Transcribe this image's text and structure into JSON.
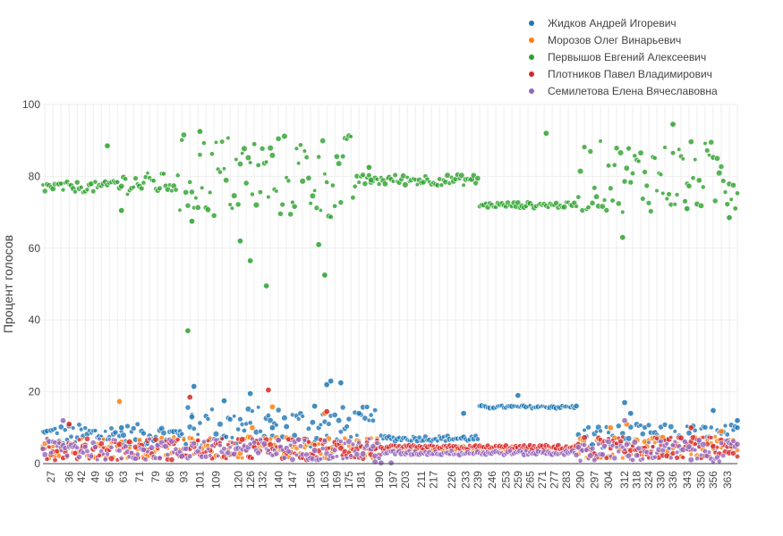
{
  "chart_data": {
    "type": "scatter",
    "title": "",
    "xlabel": "",
    "ylabel": "Процент голосов",
    "ylim": [
      0,
      100
    ],
    "xlim": [
      23,
      368
    ],
    "grid": true,
    "legend_position": "top-right",
    "y_ticks": [
      0,
      20,
      40,
      60,
      80,
      100
    ],
    "x_ticks": [
      27,
      36,
      42,
      49,
      56,
      63,
      71,
      79,
      86,
      93,
      101,
      109,
      120,
      126,
      132,
      140,
      147,
      156,
      163,
      169,
      175,
      181,
      190,
      197,
      203,
      211,
      217,
      226,
      233,
      239,
      246,
      253,
      259,
      265,
      271,
      277,
      283,
      290,
      297,
      304,
      312,
      318,
      324,
      330,
      336,
      343,
      350,
      356,
      363
    ],
    "series": [
      {
        "name": "Жидков Андрей Игоревич",
        "color": "#1f77b4",
        "segments": [
          {
            "x_start": 23,
            "x_end": 91,
            "center": 8,
            "spread": 3
          },
          {
            "x_start": 91,
            "x_end": 190,
            "center": 10,
            "spread": 6
          },
          {
            "x_start": 191,
            "x_end": 239,
            "center": 7,
            "spread": 0.8
          },
          {
            "x_start": 240,
            "x_end": 288,
            "center": 15.8,
            "spread": 0.4
          },
          {
            "x_start": 289,
            "x_end": 368,
            "center": 7,
            "spread": 4
          }
        ],
        "outliers": [
          [
            62,
            10
          ],
          [
            97,
            13
          ],
          [
            98,
            21.5
          ],
          [
            113,
            17.5
          ],
          [
            126,
            19.5
          ],
          [
            137,
            10
          ],
          [
            158,
            16
          ],
          [
            164,
            22
          ],
          [
            166,
            23
          ],
          [
            171,
            22.5
          ],
          [
            180,
            14
          ],
          [
            232,
            14
          ],
          [
            259,
            19
          ],
          [
            312,
            17
          ],
          [
            315,
            14
          ],
          [
            356,
            14.8
          ],
          [
            368,
            12
          ]
        ]
      },
      {
        "name": "Морозов Олег Винарьевич",
        "color": "#ff7f0e",
        "segments": [
          {
            "x_start": 23,
            "x_end": 190,
            "center": 4.5,
            "spread": 3
          },
          {
            "x_start": 191,
            "x_end": 288,
            "center": 4,
            "spread": 0.8
          },
          {
            "x_start": 289,
            "x_end": 368,
            "center": 4.5,
            "spread": 3
          }
        ],
        "outliers": [
          [
            61,
            17.3
          ],
          [
            127,
            10
          ],
          [
            137,
            15.8
          ],
          [
            163,
            14
          ],
          [
            305,
            10
          ],
          [
            313,
            11
          ],
          [
            360,
            9
          ]
        ]
      },
      {
        "name": "Первышов Евгений Алексеевич",
        "color": "#2ca02c",
        "segments": [
          {
            "x_start": 23,
            "x_end": 55,
            "center": 77,
            "spread": 1.5
          },
          {
            "x_start": 56,
            "x_end": 90,
            "center": 78,
            "spread": 3
          },
          {
            "x_start": 91,
            "x_end": 179,
            "center": 80,
            "spread": 12
          },
          {
            "x_start": 180,
            "x_end": 239,
            "center": 79,
            "spread": 1.5
          },
          {
            "x_start": 240,
            "x_end": 288,
            "center": 72,
            "spread": 0.8
          },
          {
            "x_start": 289,
            "x_end": 368,
            "center": 80,
            "spread": 10
          }
        ],
        "outliers": [
          [
            55,
            88.5
          ],
          [
            62,
            70.5
          ],
          [
            95,
            37
          ],
          [
            97,
            67.5
          ],
          [
            101,
            92.5
          ],
          [
            121,
            62
          ],
          [
            126,
            56.5
          ],
          [
            134,
            49.5
          ],
          [
            160,
            61
          ],
          [
            163,
            52.5
          ],
          [
            185,
            82.5
          ],
          [
            186,
            79
          ],
          [
            273,
            92
          ],
          [
            311,
            63
          ],
          [
            336,
            94.5
          ],
          [
            343,
            71
          ],
          [
            364,
            68.5
          ]
        ]
      },
      {
        "name": "Плотников Павел Владимирович",
        "color": "#d62728",
        "segments": [
          {
            "x_start": 23,
            "x_end": 190,
            "center": 4,
            "spread": 3
          },
          {
            "x_start": 191,
            "x_end": 288,
            "center": 4.5,
            "spread": 0.6
          },
          {
            "x_start": 289,
            "x_end": 368,
            "center": 4.5,
            "spread": 3
          }
        ],
        "outliers": [
          [
            36,
            11
          ],
          [
            96,
            18.5
          ],
          [
            135,
            20.5
          ],
          [
            164,
            14.5
          ],
          [
            345,
            10
          ]
        ]
      },
      {
        "name": "Семилетова Елена Вячеславовна",
        "color": "#9467bd",
        "segments": [
          {
            "x_start": 23,
            "x_end": 190,
            "center": 4,
            "spread": 3
          },
          {
            "x_start": 191,
            "x_end": 288,
            "center": 3,
            "spread": 0.6
          },
          {
            "x_start": 289,
            "x_end": 368,
            "center": 3.5,
            "spread": 3
          }
        ],
        "outliers": [
          [
            33,
            12
          ],
          [
            188,
            0.5
          ],
          [
            191,
            0.2
          ],
          [
            196,
            0.2
          ],
          [
            312,
            12
          ]
        ]
      }
    ]
  }
}
